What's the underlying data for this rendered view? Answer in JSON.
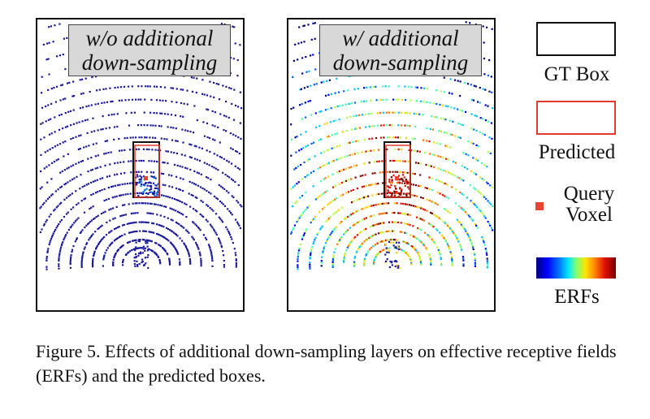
{
  "panels": {
    "left": {
      "label_line1": "w/o additional",
      "label_line2": "down-sampling"
    },
    "right": {
      "label_line1": "w/ additional",
      "label_line2": "down-sampling"
    }
  },
  "legend": {
    "gt_box": "GT Box",
    "predicted": "Predicted",
    "query_line1": "Query",
    "query_line2": "Voxel",
    "erfs": "ERFs"
  },
  "colors": {
    "gt_box": "#111111",
    "predicted": "#e23b2b",
    "query_voxel": "#e8442e",
    "points_left": "#1a1a9a",
    "erf_low": "#00007f",
    "erf_high": "#7a0000"
  },
  "caption": "Figure 5. Effects of additional down-sampling layers on effective receptive fields (ERFs) and the predicted boxes."
}
